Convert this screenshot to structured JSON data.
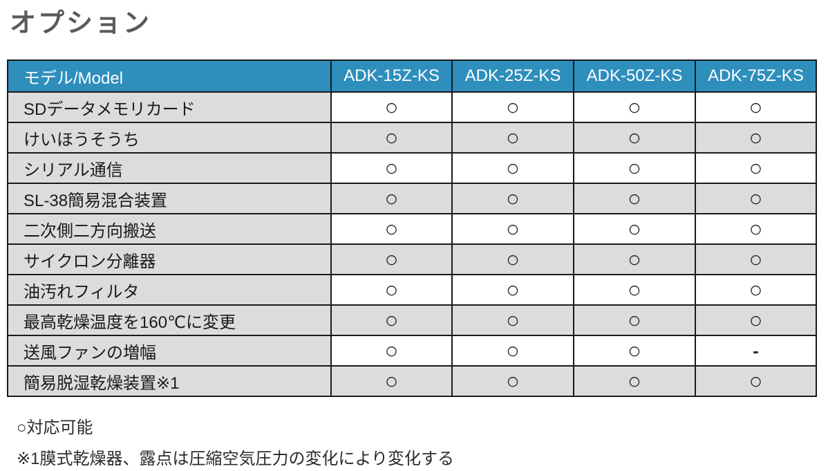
{
  "title": "オプション",
  "colors": {
    "header_bg": "#2E8EBC",
    "header_text": "#FFFFFF",
    "row_gray": "#DCDCDC",
    "row_white": "#FFFFFF",
    "border": "#1A1A1A",
    "title_text": "#595959",
    "body_text": "#1A1A1A"
  },
  "table": {
    "header": [
      "モデル/Model",
      "ADK-15Z-KS",
      "ADK-25Z-KS",
      "ADK-50Z-KS",
      "ADK-75Z-KS"
    ],
    "available_mark": "○",
    "not_available_mark": "-",
    "rows": [
      {
        "label": "SDデータメモリカード",
        "values": [
          "○",
          "○",
          "○",
          "○"
        ]
      },
      {
        "label": "けいほうそうち",
        "values": [
          "○",
          "○",
          "○",
          "○"
        ]
      },
      {
        "label": "シリアル通信",
        "values": [
          "○",
          "○",
          "○",
          "○"
        ]
      },
      {
        "label": "SL-38簡易混合装置",
        "values": [
          "○",
          "○",
          "○",
          "○"
        ]
      },
      {
        "label": "二次側二方向搬送",
        "values": [
          "○",
          "○",
          "○",
          "○"
        ]
      },
      {
        "label": "サイクロン分離器",
        "values": [
          "○",
          "○",
          "○",
          "○"
        ]
      },
      {
        "label": "油汚れフィルタ",
        "values": [
          "○",
          "○",
          "○",
          "○"
        ]
      },
      {
        "label": "最高乾燥温度を160℃に変更",
        "values": [
          "○",
          "○",
          "○",
          "○"
        ]
      },
      {
        "label": "送風ファンの増幅",
        "values": [
          "○",
          "○",
          "○",
          "-"
        ]
      },
      {
        "label": "簡易脱湿乾燥装置※1",
        "values": [
          "○",
          "○",
          "○",
          "○"
        ]
      }
    ]
  },
  "legend": {
    "line1": "○対応可能",
    "line2": "※1膜式乾燥器、露点は圧縮空気圧力の変化により変化する"
  }
}
